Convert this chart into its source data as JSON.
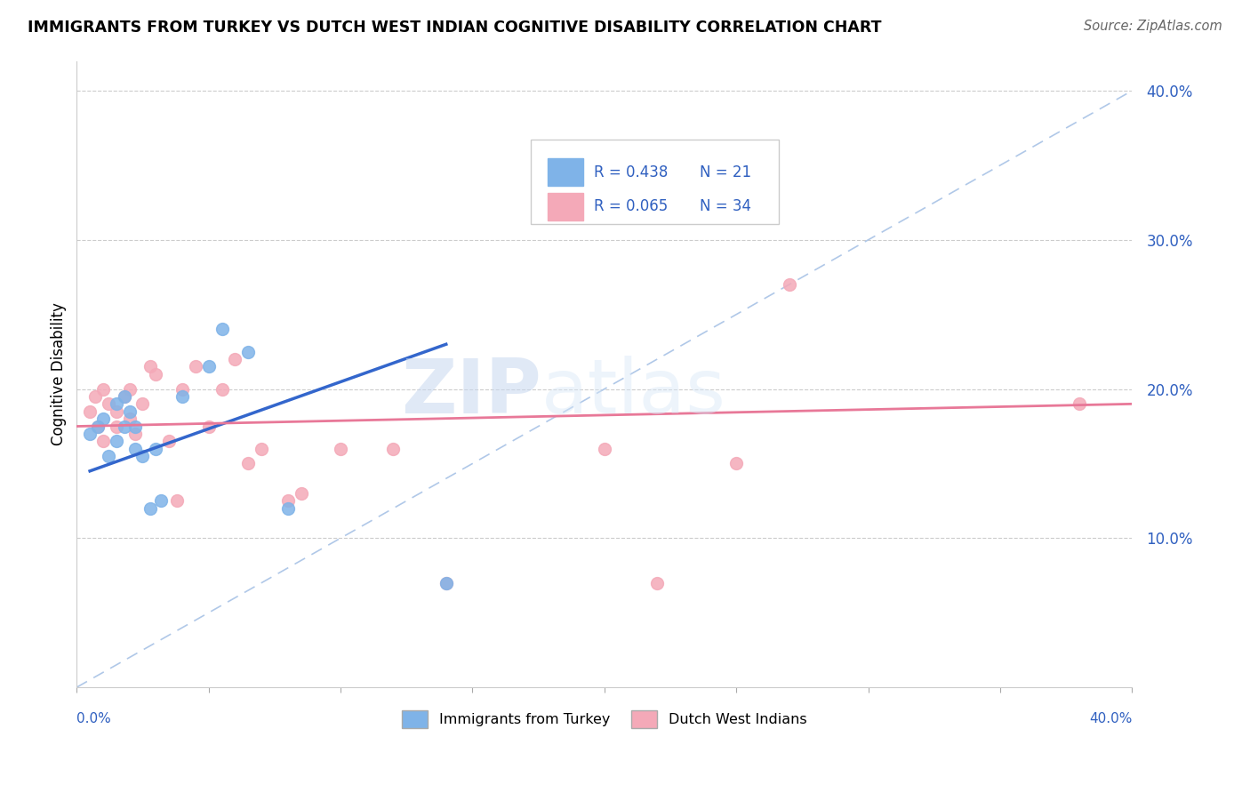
{
  "title": "IMMIGRANTS FROM TURKEY VS DUTCH WEST INDIAN COGNITIVE DISABILITY CORRELATION CHART",
  "source": "Source: ZipAtlas.com",
  "ylabel": "Cognitive Disability",
  "xlim": [
    0.0,
    0.4
  ],
  "ylim": [
    0.0,
    0.42
  ],
  "yticks": [
    0.1,
    0.2,
    0.3,
    0.4
  ],
  "ytick_labels": [
    "10.0%",
    "20.0%",
    "30.0%",
    "40.0%"
  ],
  "legend_blue_r": "R = 0.438",
  "legend_blue_n": "N = 21",
  "legend_pink_r": "R = 0.065",
  "legend_pink_n": "N = 34",
  "blue_color": "#7fb3e8",
  "pink_color": "#f4a9b8",
  "blue_line_color": "#3366cc",
  "pink_line_color": "#e87898",
  "diagonal_color": "#b0c8e8",
  "watermark_zip": "ZIP",
  "watermark_atlas": "atlas",
  "blue_scatter_x": [
    0.005,
    0.008,
    0.01,
    0.012,
    0.015,
    0.015,
    0.018,
    0.018,
    0.02,
    0.022,
    0.022,
    0.025,
    0.028,
    0.03,
    0.032,
    0.04,
    0.05,
    0.055,
    0.065,
    0.08,
    0.14
  ],
  "blue_scatter_y": [
    0.17,
    0.175,
    0.18,
    0.155,
    0.19,
    0.165,
    0.195,
    0.175,
    0.185,
    0.175,
    0.16,
    0.155,
    0.12,
    0.16,
    0.125,
    0.195,
    0.215,
    0.24,
    0.225,
    0.12,
    0.07
  ],
  "pink_scatter_x": [
    0.005,
    0.007,
    0.008,
    0.01,
    0.01,
    0.012,
    0.015,
    0.015,
    0.018,
    0.02,
    0.02,
    0.022,
    0.025,
    0.028,
    0.03,
    0.035,
    0.038,
    0.04,
    0.045,
    0.05,
    0.055,
    0.06,
    0.065,
    0.07,
    0.08,
    0.085,
    0.1,
    0.12,
    0.14,
    0.2,
    0.25,
    0.27,
    0.22,
    0.38
  ],
  "pink_scatter_y": [
    0.185,
    0.195,
    0.175,
    0.2,
    0.165,
    0.19,
    0.185,
    0.175,
    0.195,
    0.2,
    0.18,
    0.17,
    0.19,
    0.215,
    0.21,
    0.165,
    0.125,
    0.2,
    0.215,
    0.175,
    0.2,
    0.22,
    0.15,
    0.16,
    0.125,
    0.13,
    0.16,
    0.16,
    0.07,
    0.16,
    0.15,
    0.27,
    0.07,
    0.19
  ],
  "blue_line_x": [
    0.005,
    0.14
  ],
  "blue_line_y_start": 0.145,
  "blue_line_y_end": 0.23,
  "pink_line_x": [
    0.0,
    0.4
  ],
  "pink_line_y_start": 0.175,
  "pink_line_y_end": 0.19
}
